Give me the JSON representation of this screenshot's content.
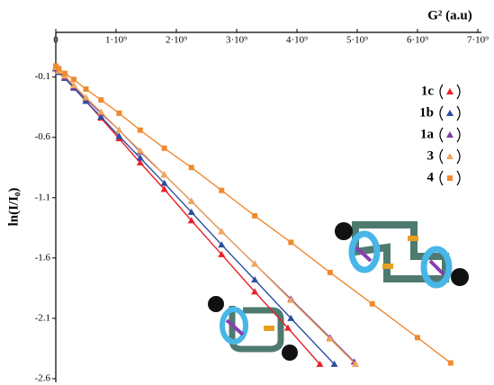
{
  "chart_data": {
    "type": "line",
    "x_label": "G² (a.u)",
    "y_label": "ln(I/I₀)",
    "xlim": [
      0,
      7000000000.0
    ],
    "ylim": [
      -2.63,
      0.27
    ],
    "xticks": [
      0,
      {
        "value": 1000000000.0,
        "label": "1·10⁹"
      },
      {
        "value": 2000000000.0,
        "label": "2·10⁹"
      },
      {
        "value": 3000000000.0,
        "label": "3·10⁹"
      },
      {
        "value": 4000000000.0,
        "label": "4·10⁹"
      },
      {
        "value": 5000000000.0,
        "label": "5·10⁹"
      },
      {
        "value": 6000000000.0,
        "label": "6·10⁹"
      },
      {
        "value": 7000000000.0,
        "label": "7·10⁹"
      }
    ],
    "yticks": [
      -0.1,
      -0.6,
      -1.1,
      -1.6,
      -2.1,
      -2.6
    ],
    "series": [
      {
        "name": "1c",
        "color": "#e8202a",
        "marker": "triangle",
        "x": [
          0,
          50000000.0,
          150000000.0,
          300000000.0,
          500000000.0,
          750000000.0,
          1050000000.0,
          1400000000.0,
          1800000000.0,
          2250000000.0,
          2750000000.0,
          3300000000.0,
          3850000000.0,
          4380000000.0
        ],
        "values": [
          -0.03,
          -0.06,
          -0.11,
          -0.19,
          -0.3,
          -0.44,
          -0.61,
          -0.81,
          -1.03,
          -1.29,
          -1.57,
          -1.88,
          -2.18,
          -2.48
        ]
      },
      {
        "name": "1b",
        "color": "#2a4fa0",
        "marker": "triangle",
        "x": [
          0,
          50000000.0,
          150000000.0,
          300000000.0,
          500000000.0,
          750000000.0,
          1050000000.0,
          1400000000.0,
          1800000000.0,
          2250000000.0,
          2750000000.0,
          3300000000.0,
          3900000000.0,
          4620000000.0
        ],
        "values": [
          -0.03,
          -0.06,
          -0.11,
          -0.19,
          -0.3,
          -0.43,
          -0.59,
          -0.77,
          -0.98,
          -1.22,
          -1.49,
          -1.78,
          -2.1,
          -2.48
        ]
      },
      {
        "name": "1a",
        "color": "#7b3f9e",
        "marker": "triangle",
        "x": [
          0,
          50000000.0,
          150000000.0,
          300000000.0,
          500000000.0,
          750000000.0,
          1050000000.0,
          1400000000.0,
          1800000000.0,
          2250000000.0,
          2750000000.0,
          3300000000.0,
          3900000000.0,
          4550000000.0,
          4950000000.0
        ],
        "values": [
          -0.03,
          -0.05,
          -0.1,
          -0.18,
          -0.28,
          -0.4,
          -0.54,
          -0.72,
          -0.91,
          -1.13,
          -1.38,
          -1.65,
          -1.94,
          -2.26,
          -2.46
        ]
      },
      {
        "name": "3",
        "color": "#f2a65a",
        "marker": "triangle",
        "x": [
          0,
          50000000.0,
          150000000.0,
          300000000.0,
          500000000.0,
          750000000.0,
          1050000000.0,
          1400000000.0,
          1800000000.0,
          2250000000.0,
          2750000000.0,
          3300000000.0,
          3900000000.0,
          4550000000.0,
          4970000000.0
        ],
        "values": [
          -0.02,
          -0.05,
          -0.09,
          -0.17,
          -0.27,
          -0.39,
          -0.54,
          -0.71,
          -0.91,
          -1.13,
          -1.38,
          -1.65,
          -1.95,
          -2.27,
          -2.48
        ]
      },
      {
        "name": "4",
        "color": "#f08a30",
        "marker": "square",
        "x": [
          0,
          50000000.0,
          150000000.0,
          300000000.0,
          500000000.0,
          750000000.0,
          1050000000.0,
          1400000000.0,
          1800000000.0,
          2250000000.0,
          2750000000.0,
          3300000000.0,
          3900000000.0,
          4550000000.0,
          5250000000.0,
          6000000000.0,
          6550000000.0
        ],
        "values": [
          -0.01,
          -0.03,
          -0.07,
          -0.12,
          -0.2,
          -0.29,
          -0.4,
          -0.54,
          -0.69,
          -0.85,
          -1.04,
          -1.25,
          -1.47,
          -1.72,
          -1.98,
          -2.26,
          -2.47
        ]
      }
    ]
  }
}
